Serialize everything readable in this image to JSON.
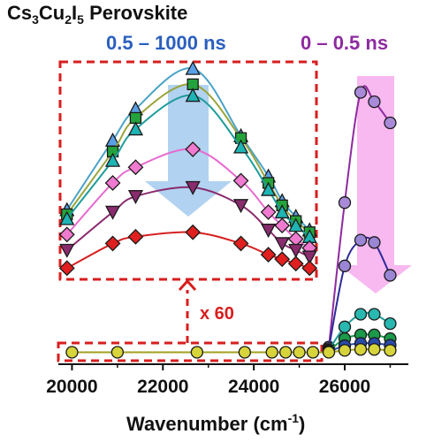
{
  "chart_data": {
    "type": "line",
    "title": "Cs3Cu2I5 Perovskite",
    "title_parts": {
      "base": "Cs",
      "sub1": "3",
      "mid1": "Cu",
      "sub2": "2",
      "mid2": "I",
      "sub3": "5",
      "rest": " Perovskite"
    },
    "xlabel": "Wavenumber (cm",
    "xlabel_sup": "-1",
    "xlabel_close": ")",
    "xlim": [
      19700,
      27400
    ],
    "x_ticks": [
      "20000",
      "22000",
      "24000",
      "26000"
    ],
    "x_tick_values": [
      20000,
      22000,
      24000,
      26000
    ],
    "ylim": [
      0,
      6.2
    ],
    "grid": false,
    "annotations": {
      "late_range": "0.5 – 1000 ns",
      "early_range": "0 – 0.5 ns",
      "scale_factor": "x 60",
      "late_color": "#2b5fbf",
      "early_color": "#8e2aa0",
      "box_color": "#d81e1e"
    },
    "inset": {
      "magnification": 60,
      "xlim": [
        19850,
        25450
      ],
      "ylim": [
        0,
        0.97
      ],
      "x": [
        20000,
        21000,
        21500,
        22750,
        23800,
        24400,
        24700,
        25000,
        25300
      ],
      "series": [
        {
          "marker": "triangle-up",
          "color": "#5aa0e6",
          "line_color": "#4aa3c8",
          "values": [
            0.31,
            0.62,
            0.76,
            0.94,
            0.64,
            0.46,
            0.35,
            0.28,
            0.22
          ]
        },
        {
          "marker": "square",
          "color": "#24a33c",
          "line_color": "#9aa43a",
          "values": [
            0.29,
            0.57,
            0.72,
            0.87,
            0.63,
            0.43,
            0.33,
            0.26,
            0.21
          ]
        },
        {
          "marker": "triangle-up",
          "color": "#1fb4b4",
          "line_color": "#1e9c9c",
          "values": [
            0.27,
            0.53,
            0.67,
            0.82,
            0.59,
            0.4,
            0.3,
            0.24,
            0.19
          ]
        },
        {
          "marker": "diamond",
          "color": "#f07ad0",
          "line_color": "#e86ad0",
          "values": [
            0.2,
            0.43,
            0.5,
            0.58,
            0.44,
            0.3,
            0.24,
            0.18,
            0.14
          ]
        },
        {
          "marker": "triangle-down",
          "color": "#8a2b6e",
          "line_color": "#8a2b6e",
          "values": [
            0.13,
            0.3,
            0.37,
            0.41,
            0.33,
            0.22,
            0.16,
            0.13,
            0.1
          ]
        },
        {
          "marker": "diamond",
          "color": "#e0201e",
          "line_color": "#d62020",
          "values": [
            0.05,
            0.16,
            0.19,
            0.21,
            0.16,
            0.11,
            0.09,
            0.07,
            0.05
          ]
        }
      ]
    },
    "main_series": [
      {
        "marker": "circle",
        "color": "#a88ad8",
        "line_color": "#8e2aa0",
        "x": [
          25650,
          26000,
          26350,
          26650,
          27000
        ],
        "values": [
          0.12,
          3.2,
          5.55,
          5.35,
          4.9
        ]
      },
      {
        "marker": "circle",
        "color": "#9a86d4",
        "line_color": "#2f2a9a",
        "x": [
          25650,
          26000,
          26350,
          26650,
          27000
        ],
        "values": [
          0.09,
          1.85,
          2.4,
          2.35,
          1.65
        ]
      },
      {
        "marker": "circle",
        "color": "#28b8b0",
        "line_color": "#1e9c9c",
        "x": [
          25650,
          26000,
          26350,
          26650,
          27000
        ],
        "values": [
          0.06,
          0.55,
          0.82,
          0.82,
          0.62
        ]
      },
      {
        "marker": "circle",
        "color": "#1a9a4a",
        "line_color": "#1a9a4a",
        "x": [
          25650,
          26000,
          26350,
          26650,
          27000
        ],
        "values": [
          0.04,
          0.3,
          0.38,
          0.38,
          0.3
        ]
      },
      {
        "marker": "circle",
        "color": "#2a4aaa",
        "line_color": "#2a4aaa",
        "x": [
          25650,
          26000,
          26350,
          26650,
          27000
        ],
        "values": [
          0.02,
          0.15,
          0.2,
          0.2,
          0.16
        ]
      },
      {
        "marker": "circle",
        "color": "#d6d43a",
        "line_color": "#a0a020",
        "x": [
          20000,
          21000,
          22750,
          23800,
          24400,
          24700,
          25000,
          25300,
          25650,
          26000,
          26350,
          26650,
          27000
        ],
        "values": [
          0.01,
          0.01,
          0.01,
          0.01,
          0.01,
          0.01,
          0.01,
          0.01,
          0.01,
          0.05,
          0.07,
          0.07,
          0.05
        ]
      }
    ]
  },
  "colors": {
    "arrow_late": "#a8cdee",
    "arrow_early": "#f7b0ee",
    "dashed_box": "#d81e1e"
  }
}
